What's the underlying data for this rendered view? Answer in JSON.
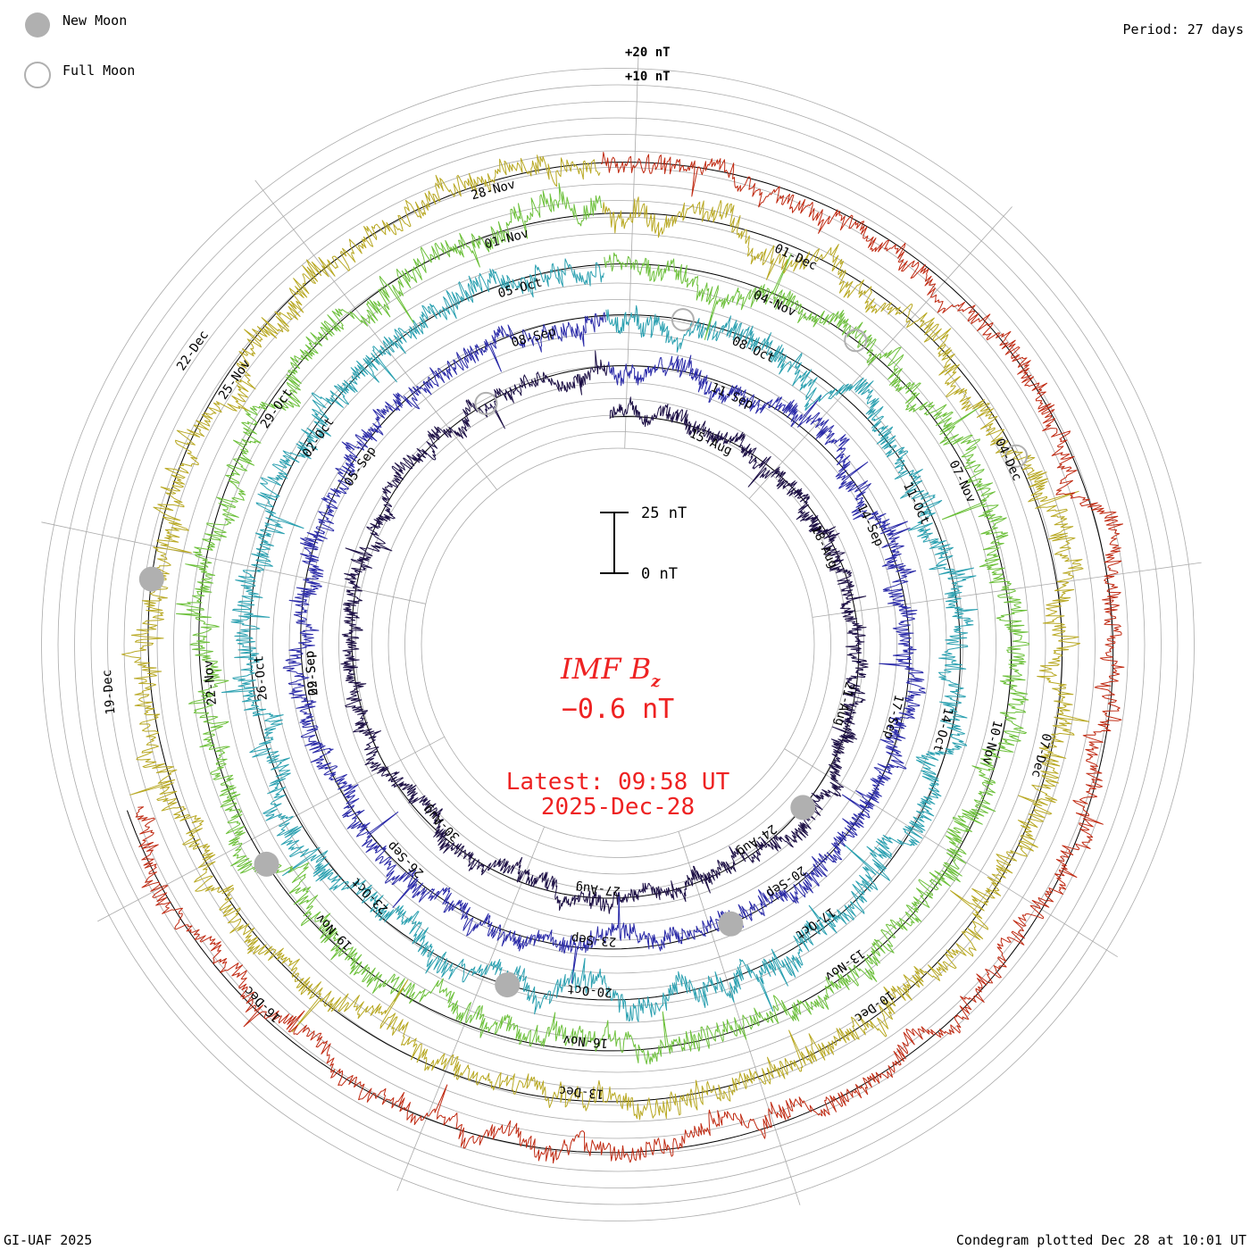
{
  "header": {
    "legend": [
      {
        "label": "New Moon",
        "marker": "filled"
      },
      {
        "label": "Full Moon",
        "marker": "open"
      }
    ],
    "period": "Period: 27 days"
  },
  "footer": {
    "credit": "GI-UAF 2025",
    "plotted": "Condegram plotted Dec 28 at 10:01 UT"
  },
  "scale": {
    "top_label": "25 nT",
    "bottom_label": "0 nT"
  },
  "readout": {
    "title_main": "IMF B",
    "title_sub": "z",
    "value": "−0.6 nT",
    "latest": "Latest: 09:58 UT",
    "date": "2025-Dec-28"
  },
  "colors": {
    "ink": "#000000",
    "grid": "#aaaaaa",
    "moon": "#b0b0b0",
    "readout": "#ee2222"
  },
  "chart_data": {
    "type": "condegram",
    "title": "IMF Bz",
    "units": "nT",
    "period_days": 27,
    "ring_scale_labels": [
      "+20 nT",
      "+10 nT"
    ],
    "scale_bar_nT": [
      0,
      25
    ],
    "latest_value_nT": -0.6,
    "rotations": [
      {
        "start": "2025-08-13",
        "color": "#1c0f45",
        "amplitude_nT": 4,
        "spikiness": 0.4,
        "tick_labels": [
          "15-Aug",
          "18-Aug",
          "21-Aug",
          "24-Aug",
          "27-Aug",
          "30-Aug"
        ]
      },
      {
        "start": "2025-09-09",
        "color": "#2a2aa8",
        "amplitude_nT": 5,
        "spikiness": 0.6,
        "tick_labels": [
          "11-Sep",
          "14-Sep",
          "17-Sep",
          "20-Sep",
          "23-Sep",
          "26-Sep",
          "29-Sep",
          "02-Sep",
          "05-Sep",
          "08-Sep"
        ]
      },
      {
        "start": "2025-10-06",
        "color": "#2aa0b0",
        "amplitude_nT": 6,
        "spikiness": 0.5,
        "tick_labels": [
          "08-Oct",
          "11-Oct",
          "14-Oct",
          "17-Oct",
          "20-Oct",
          "23-Oct",
          "26-Oct",
          "02-Oct",
          "05-Oct"
        ]
      },
      {
        "start": "2025-11-02",
        "color": "#6cc03a",
        "amplitude_nT": 6,
        "spikiness": 0.6,
        "tick_labels": [
          "04-Nov",
          "07-Nov",
          "10-Nov",
          "13-Nov",
          "16-Nov",
          "19-Nov",
          "22-Nov",
          "29-Oct",
          "01-Nov"
        ]
      },
      {
        "start": "2025-11-29",
        "color": "#b8a822",
        "amplitude_nT": 6,
        "spikiness": 0.5,
        "tick_labels": [
          "01-Dec",
          "04-Dec",
          "07-Dec",
          "10-Dec",
          "13-Dec",
          "25-Nov",
          "28-Nov"
        ]
      },
      {
        "start": "2025-12-18",
        "color": "#c02a12",
        "amplitude_nT": 5,
        "spikiness": 0.4,
        "tick_labels": [
          "16-Dec",
          "19-Dec",
          "22-Dec"
        ]
      }
    ],
    "new_moon_dates": [
      "2025-08-23",
      "2025-09-21",
      "2025-10-21",
      "2025-11-20",
      "2025-12-20"
    ],
    "full_moon_dates": [
      "2025-09-07",
      "2025-10-07",
      "2025-11-05",
      "2025-12-04"
    ]
  }
}
